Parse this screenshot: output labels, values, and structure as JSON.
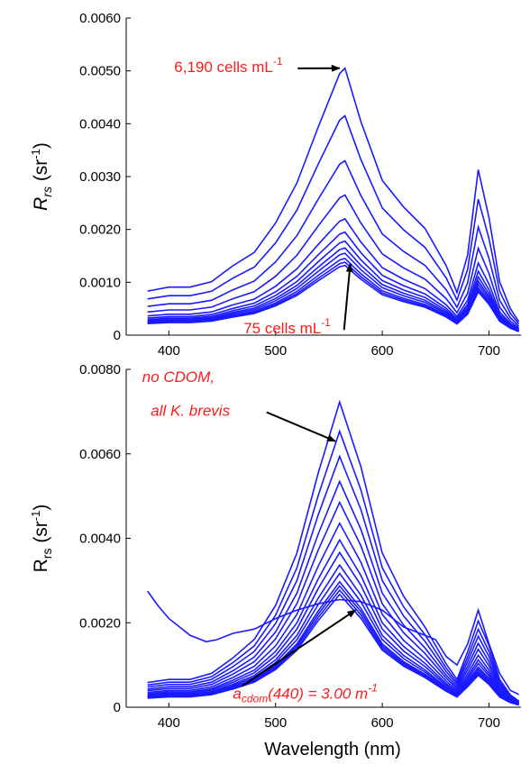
{
  "chart_data": [
    {
      "type": "line",
      "ylabel_main": "R",
      "ylabel_sub": "rs",
      "ylabel_italic": true,
      "ylabel_unit_open": " (sr",
      "ylabel_unit_sup": "-1",
      "ylabel_unit_close": ")",
      "xlim": [
        360,
        730
      ],
      "ylim": [
        0,
        0.006
      ],
      "xticks": [
        {
          "value": 400,
          "label": "400"
        },
        {
          "value": 500,
          "label": "500"
        },
        {
          "value": 600,
          "label": "600"
        },
        {
          "value": 700,
          "label": "700"
        }
      ],
      "yticks": [
        {
          "value": 0,
          "label": "0"
        },
        {
          "value": 0.001,
          "label": "0.0010"
        },
        {
          "value": 0.002,
          "label": "0.0020"
        },
        {
          "value": 0.003,
          "label": "0.0030"
        },
        {
          "value": 0.004,
          "label": "0.0040"
        },
        {
          "value": 0.005,
          "label": "0.0050"
        },
        {
          "value": 0.006,
          "label": "0.0060"
        }
      ],
      "x": [
        380,
        400,
        420,
        440,
        460,
        480,
        500,
        520,
        540,
        560,
        565,
        580,
        600,
        620,
        640,
        660,
        670,
        680,
        690,
        700,
        710,
        720,
        728
      ],
      "series_shape": [
        0.165,
        0.18,
        0.18,
        0.2,
        0.26,
        0.31,
        0.42,
        0.57,
        0.78,
        0.98,
        1.0,
        0.8,
        0.58,
        0.48,
        0.4,
        0.26,
        0.16,
        0.3,
        0.62,
        0.44,
        0.2,
        0.1,
        0.05
      ],
      "series_peaks": [
        0.00505,
        0.00415,
        0.0033,
        0.00265,
        0.0022,
        0.00195,
        0.00178,
        0.00165,
        0.00155,
        0.00145,
        0.00138,
        0.00132
      ],
      "annotations": [
        {
          "text": "6,190 cells mL",
          "sup": "-1",
          "tx": 405,
          "ty": 0.00498,
          "ax": 560,
          "ay": 0.00505
        },
        {
          "text": "75 cells mL",
          "sup": "-1",
          "tx": 470,
          "ty": 3e-05,
          "ax": 570,
          "ay": 0.00135
        }
      ]
    },
    {
      "type": "line",
      "ylabel_main": "R",
      "ylabel_sub": "rs",
      "ylabel_italic": false,
      "ylabel_unit_open": " (sr",
      "ylabel_unit_sup": "-1",
      "ylabel_unit_close": ")",
      "xlim": [
        360,
        730
      ],
      "ylim": [
        0,
        0.008
      ],
      "xticks": [
        {
          "value": 400,
          "label": "400"
        },
        {
          "value": 500,
          "label": "500"
        },
        {
          "value": 600,
          "label": "600"
        },
        {
          "value": 700,
          "label": "700"
        }
      ],
      "yticks": [
        {
          "value": 0,
          "label": "0"
        },
        {
          "value": 0.002,
          "label": "0.0020"
        },
        {
          "value": 0.004,
          "label": "0.0040"
        },
        {
          "value": 0.006,
          "label": "0.0060"
        },
        {
          "value": 0.008,
          "label": "0.0080"
        }
      ],
      "xlabel": "Wavelength (nm)",
      "x": [
        380,
        400,
        420,
        440,
        460,
        480,
        500,
        520,
        540,
        560,
        580,
        600,
        620,
        640,
        660,
        670,
        680,
        690,
        700,
        710,
        720,
        728
      ],
      "series_shape": [
        0.08,
        0.09,
        0.09,
        0.11,
        0.16,
        0.22,
        0.33,
        0.5,
        0.76,
        0.99,
        0.78,
        0.5,
        0.36,
        0.26,
        0.14,
        0.09,
        0.18,
        0.28,
        0.2,
        0.09,
        0.04,
        0.02
      ],
      "series_peaks": [
        0.0073,
        0.0066,
        0.006,
        0.0054,
        0.0049,
        0.0044,
        0.004,
        0.0037,
        0.0034,
        0.0032,
        0.003,
        0.0029,
        0.0028,
        0.0027
      ],
      "series_floor": 0.0018,
      "cdom_curve": {
        "x": [
          380,
          390,
          400,
          410,
          420,
          435,
          445,
          460,
          480,
          500,
          520,
          540,
          560,
          580,
          600,
          620,
          640,
          650,
          660,
          670,
          680,
          690,
          700,
          710,
          720,
          728
        ],
        "y": [
          0.00275,
          0.0024,
          0.0021,
          0.0019,
          0.0017,
          0.00155,
          0.0016,
          0.00175,
          0.00185,
          0.0021,
          0.0023,
          0.00245,
          0.00255,
          0.0025,
          0.0023,
          0.0019,
          0.0017,
          0.0016,
          0.0012,
          0.001,
          0.0015,
          0.0023,
          0.0015,
          0.0008,
          0.0004,
          0.0003
        ]
      },
      "annotations": [
        {
          "text": "no CDOM,",
          "tx": 375,
          "ty": 0.0077,
          "italic": true
        },
        {
          "text": "all K. brevis",
          "tx": 383,
          "ty": 0.0069,
          "italic": true,
          "ax": 556,
          "ay": 0.0063
        },
        {
          "text": "a",
          "sub": "cdom",
          "after": "(440) = 3.00 m",
          "sup": "-1",
          "tx": 460,
          "ty": 0.0002,
          "italic": true,
          "ax": 575,
          "ay": 0.0023
        }
      ]
    }
  ]
}
